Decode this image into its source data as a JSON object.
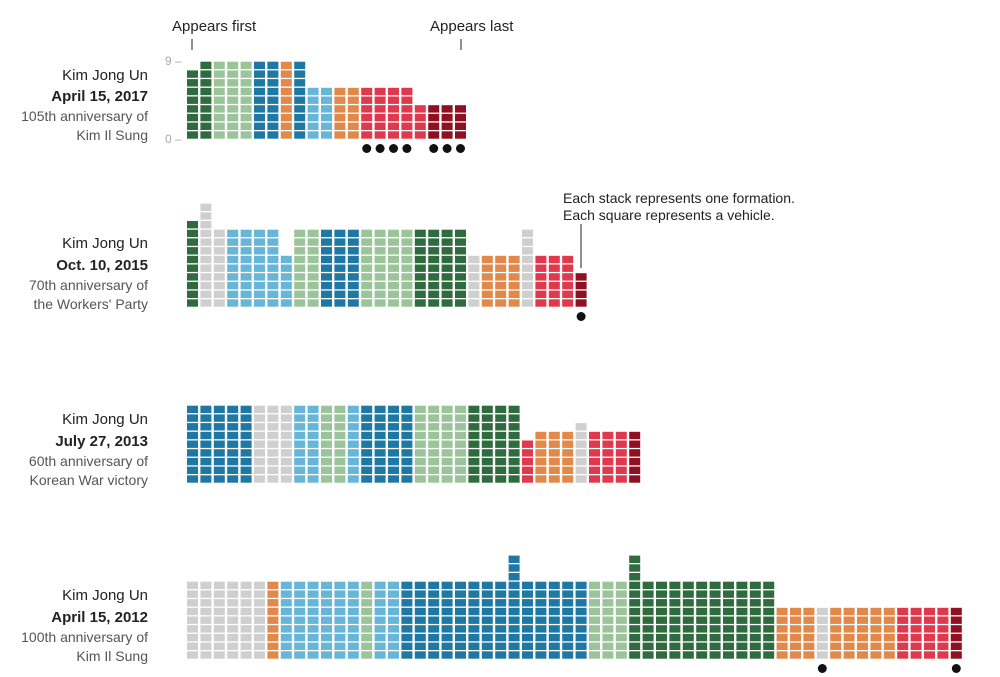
{
  "colors": {
    "dark_green": "#2f6b3f",
    "light_green": "#9cc49b",
    "dark_blue": "#1f78a3",
    "light_blue": "#67b6d8",
    "orange": "#e0894a",
    "red": "#e0394d",
    "dark_red": "#8f1020",
    "gray": "#cfcfcf",
    "dot": "#111111"
  },
  "annotations": {
    "appears_first": "Appears first",
    "appears_last": "Appears last",
    "note_line1": "Each stack represents one formation.",
    "note_line2": "Each square represents a vehicle."
  },
  "chart_data": {
    "type": "stacked-waffle",
    "y_ticks": [
      "9",
      "0"
    ],
    "parades": [
      {
        "leader": "Kim Jong Un",
        "date": "April 15, 2017",
        "occasion_line1": "105th anniversary of",
        "occasion_line2": "Kim Il Sung",
        "stacks": [
          {
            "color": "dark_green",
            "count": 8
          },
          {
            "color": "dark_green",
            "count": 9
          },
          {
            "color": "light_green",
            "count": 9
          },
          {
            "color": "light_green",
            "count": 9
          },
          {
            "color": "light_green",
            "count": 9
          },
          {
            "color": "dark_blue",
            "count": 9
          },
          {
            "color": "dark_blue",
            "count": 9
          },
          {
            "color": "orange",
            "count": 9
          },
          {
            "color": "dark_blue",
            "count": 9
          },
          {
            "color": "light_blue",
            "count": 6
          },
          {
            "color": "light_blue",
            "count": 6
          },
          {
            "color": "orange",
            "count": 6
          },
          {
            "color": "orange",
            "count": 6
          },
          {
            "color": "red",
            "count": 6,
            "dot": true
          },
          {
            "color": "red",
            "count": 6,
            "dot": true
          },
          {
            "color": "red",
            "count": 6,
            "dot": true
          },
          {
            "color": "red",
            "count": 6,
            "dot": true
          },
          {
            "color": "red",
            "count": 4
          },
          {
            "color": "dark_red",
            "count": 4,
            "dot": true
          },
          {
            "color": "dark_red",
            "count": 4,
            "dot": true
          },
          {
            "color": "dark_red",
            "count": 4,
            "dot": true
          }
        ]
      },
      {
        "leader": "Kim Jong Un",
        "date": "Oct. 10, 2015",
        "occasion_line1": "70th anniversary of",
        "occasion_line2": "the Workers' Party",
        "stacks": [
          {
            "color": "dark_green",
            "count": 10
          },
          {
            "color": "gray",
            "count": 12
          },
          {
            "color": "gray",
            "count": 9
          },
          {
            "color": "light_blue",
            "count": 9
          },
          {
            "color": "light_blue",
            "count": 9
          },
          {
            "color": "light_blue",
            "count": 9
          },
          {
            "color": "light_blue",
            "count": 9
          },
          {
            "color": "light_blue",
            "count": 6
          },
          {
            "color": "light_green",
            "count": 9
          },
          {
            "color": "light_green",
            "count": 9
          },
          {
            "color": "dark_blue",
            "count": 9
          },
          {
            "color": "dark_blue",
            "count": 9
          },
          {
            "color": "dark_blue",
            "count": 9
          },
          {
            "color": "light_green",
            "count": 9
          },
          {
            "color": "light_green",
            "count": 9
          },
          {
            "color": "light_green",
            "count": 9
          },
          {
            "color": "light_green",
            "count": 9
          },
          {
            "color": "dark_green",
            "count": 9
          },
          {
            "color": "dark_green",
            "count": 9
          },
          {
            "color": "dark_green",
            "count": 9
          },
          {
            "color": "dark_green",
            "count": 9
          },
          {
            "color": "gray",
            "count": 6
          },
          {
            "color": "orange",
            "count": 6
          },
          {
            "color": "orange",
            "count": 6
          },
          {
            "color": "orange",
            "count": 6
          },
          {
            "color": "gray",
            "count": 9
          },
          {
            "color": "red",
            "count": 6
          },
          {
            "color": "red",
            "count": 6
          },
          {
            "color": "red",
            "count": 6
          },
          {
            "color": "dark_red",
            "count": 4,
            "dot": true
          }
        ]
      },
      {
        "leader": "Kim Jong Un",
        "date": "July 27, 2013",
        "occasion_line1": "60th anniversary of",
        "occasion_line2": "Korean War victory",
        "stacks": [
          {
            "color": "dark_blue",
            "count": 9
          },
          {
            "color": "dark_blue",
            "count": 9
          },
          {
            "color": "dark_blue",
            "count": 9
          },
          {
            "color": "dark_blue",
            "count": 9
          },
          {
            "color": "dark_blue",
            "count": 9
          },
          {
            "color": "gray",
            "count": 9
          },
          {
            "color": "gray",
            "count": 9
          },
          {
            "color": "gray",
            "count": 9
          },
          {
            "color": "light_blue",
            "count": 9
          },
          {
            "color": "light_blue",
            "count": 9
          },
          {
            "color": "light_green",
            "count": 9
          },
          {
            "color": "light_green",
            "count": 9
          },
          {
            "color": "light_blue",
            "count": 9
          },
          {
            "color": "dark_blue",
            "count": 9
          },
          {
            "color": "dark_blue",
            "count": 9
          },
          {
            "color": "dark_blue",
            "count": 9
          },
          {
            "color": "dark_blue",
            "count": 9
          },
          {
            "color": "light_green",
            "count": 9
          },
          {
            "color": "light_green",
            "count": 9
          },
          {
            "color": "light_green",
            "count": 9
          },
          {
            "color": "light_green",
            "count": 9
          },
          {
            "color": "dark_green",
            "count": 9
          },
          {
            "color": "dark_green",
            "count": 9
          },
          {
            "color": "dark_green",
            "count": 9
          },
          {
            "color": "dark_green",
            "count": 9
          },
          {
            "color": "red",
            "count": 5
          },
          {
            "color": "orange",
            "count": 6
          },
          {
            "color": "orange",
            "count": 6
          },
          {
            "color": "orange",
            "count": 6
          },
          {
            "color": "gray",
            "count": 7
          },
          {
            "color": "red",
            "count": 6
          },
          {
            "color": "red",
            "count": 6
          },
          {
            "color": "red",
            "count": 6
          },
          {
            "color": "dark_red",
            "count": 6
          }
        ]
      },
      {
        "leader": "Kim Jong Un",
        "date": "April 15, 2012",
        "occasion_line1": "100th anniversary of",
        "occasion_line2": "Kim Il Sung",
        "stacks": [
          {
            "color": "gray",
            "count": 9
          },
          {
            "color": "gray",
            "count": 9
          },
          {
            "color": "gray",
            "count": 9
          },
          {
            "color": "gray",
            "count": 9
          },
          {
            "color": "gray",
            "count": 9
          },
          {
            "color": "gray",
            "count": 9
          },
          {
            "color": "orange",
            "count": 9
          },
          {
            "color": "light_blue",
            "count": 9
          },
          {
            "color": "light_blue",
            "count": 9
          },
          {
            "color": "light_blue",
            "count": 9
          },
          {
            "color": "light_blue",
            "count": 9
          },
          {
            "color": "light_blue",
            "count": 9
          },
          {
            "color": "light_blue",
            "count": 9
          },
          {
            "color": "light_green",
            "count": 9
          },
          {
            "color": "light_blue",
            "count": 9
          },
          {
            "color": "light_blue",
            "count": 9
          },
          {
            "color": "dark_blue",
            "count": 9
          },
          {
            "color": "dark_blue",
            "count": 9
          },
          {
            "color": "dark_blue",
            "count": 9
          },
          {
            "color": "dark_blue",
            "count": 9
          },
          {
            "color": "dark_blue",
            "count": 9
          },
          {
            "color": "dark_blue",
            "count": 9
          },
          {
            "color": "dark_blue",
            "count": 9
          },
          {
            "color": "dark_blue",
            "count": 9
          },
          {
            "color": "dark_blue",
            "count": 12
          },
          {
            "color": "dark_blue",
            "count": 9
          },
          {
            "color": "dark_blue",
            "count": 9
          },
          {
            "color": "dark_blue",
            "count": 9
          },
          {
            "color": "dark_blue",
            "count": 9
          },
          {
            "color": "dark_blue",
            "count": 9
          },
          {
            "color": "light_green",
            "count": 9
          },
          {
            "color": "light_green",
            "count": 9
          },
          {
            "color": "light_green",
            "count": 9
          },
          {
            "color": "dark_green",
            "count": 12
          },
          {
            "color": "dark_green",
            "count": 9
          },
          {
            "color": "dark_green",
            "count": 9
          },
          {
            "color": "dark_green",
            "count": 9
          },
          {
            "color": "dark_green",
            "count": 9
          },
          {
            "color": "dark_green",
            "count": 9
          },
          {
            "color": "dark_green",
            "count": 9
          },
          {
            "color": "dark_green",
            "count": 9
          },
          {
            "color": "dark_green",
            "count": 9
          },
          {
            "color": "dark_green",
            "count": 9
          },
          {
            "color": "dark_green",
            "count": 9
          },
          {
            "color": "orange",
            "count": 6
          },
          {
            "color": "orange",
            "count": 6
          },
          {
            "color": "orange",
            "count": 6
          },
          {
            "color": "gray",
            "count": 6,
            "dot": true
          },
          {
            "color": "orange",
            "count": 6
          },
          {
            "color": "orange",
            "count": 6
          },
          {
            "color": "orange",
            "count": 6
          },
          {
            "color": "orange",
            "count": 6
          },
          {
            "color": "orange",
            "count": 6
          },
          {
            "color": "red",
            "count": 6
          },
          {
            "color": "red",
            "count": 6
          },
          {
            "color": "red",
            "count": 6
          },
          {
            "color": "red",
            "count": 6
          },
          {
            "color": "dark_red",
            "count": 6,
            "dot": true
          }
        ]
      }
    ]
  }
}
